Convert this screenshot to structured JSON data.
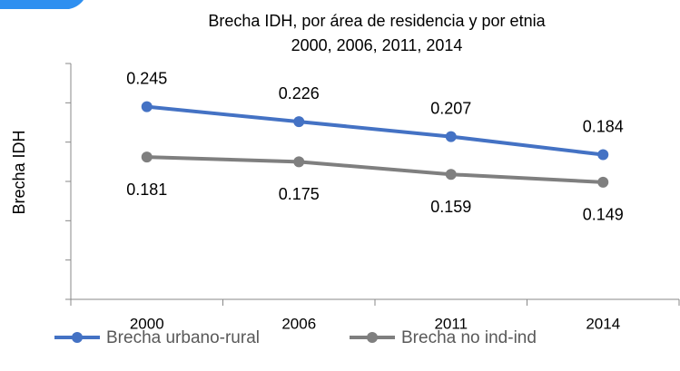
{
  "chart_data": {
    "type": "line",
    "title": [
      "Brecha IDH, por área de residencia y por etnia",
      "2000, 2006, 2011, 2014"
    ],
    "y_label": "Brecha IDH",
    "categories": [
      "2000",
      "2006",
      "2011",
      "2014"
    ],
    "series": [
      {
        "name": "Brecha urbano-rural",
        "color": "#4472c4",
        "values": [
          0.245,
          0.226,
          0.207,
          0.184
        ]
      },
      {
        "name": "Brecha no ind-ind",
        "color": "#7f7f7f",
        "values": [
          0.181,
          0.175,
          0.159,
          0.149
        ]
      }
    ],
    "ylim": [
      0,
      0.3
    ],
    "yticks": [
      0,
      0.05,
      0.1,
      0.15,
      0.2,
      0.25,
      0.3
    ],
    "legend": "bottom"
  }
}
